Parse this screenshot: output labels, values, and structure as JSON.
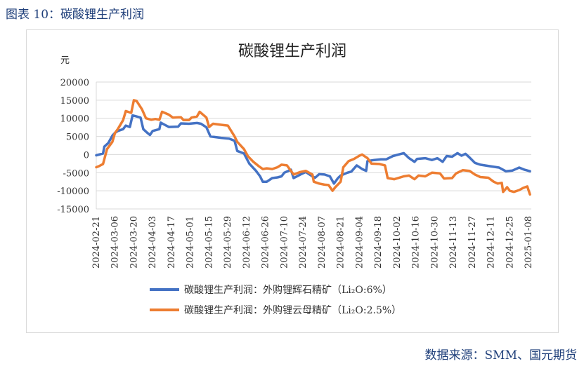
{
  "figure_caption": "图表 10：碳酸锂生产利润",
  "source": "数据来源：SMM、国元期货",
  "colors": {
    "series1": "#4472c4",
    "series2": "#ed7d31",
    "caption": "#1f3f7a"
  },
  "chart_data": {
    "type": "line",
    "title": "碳酸锂生产利润",
    "ylabel": "元",
    "xlabel": "",
    "ylim": [
      -15000,
      20000
    ],
    "yticks": [
      "20000",
      "15000",
      "10000",
      "5000",
      "0",
      "-5000",
      "-10000",
      "-15000"
    ],
    "x_tick_labels": [
      "2024-02-21",
      "2024-03-06",
      "2024-03-20",
      "2024-04-03",
      "2024-04-17",
      "2024-05-01",
      "2024-05-15",
      "2024-05-29",
      "2024-06-12",
      "2024-06-26",
      "2024-07-10",
      "2024-07-24",
      "2024-08-07",
      "2024-08-21",
      "2024-09-04",
      "2024-09-18",
      "2024-10-02",
      "2024-10-16",
      "2024-10-30",
      "2024-11-13",
      "2024-11-27",
      "2024-12-11",
      "2024-12-25",
      "2025-01-08"
    ],
    "x_range": [
      "2024-02-21",
      "2025-01-10"
    ],
    "grid": true,
    "legend_position": "bottom",
    "series": [
      {
        "name": "碳酸锂生产利润：外购锂辉石精矿（Li₂O:6%）",
        "points": [
          [
            "2024-02-21",
            -200
          ],
          [
            "2024-02-26",
            300
          ],
          [
            "2024-02-27",
            2200
          ],
          [
            "2024-03-01",
            3200
          ],
          [
            "2024-03-04",
            5200
          ],
          [
            "2024-03-06",
            6000
          ],
          [
            "2024-03-08",
            6500
          ],
          [
            "2024-03-12",
            7000
          ],
          [
            "2024-03-14",
            8000
          ],
          [
            "2024-03-17",
            7600
          ],
          [
            "2024-03-19",
            10800
          ],
          [
            "2024-03-22",
            10500
          ],
          [
            "2024-03-25",
            10200
          ],
          [
            "2024-03-27",
            7000
          ],
          [
            "2024-03-30",
            6000
          ],
          [
            "2024-04-01",
            5400
          ],
          [
            "2024-04-03",
            6500
          ],
          [
            "2024-04-08",
            7000
          ],
          [
            "2024-04-09",
            8800
          ],
          [
            "2024-04-12",
            8200
          ],
          [
            "2024-04-15",
            7600
          ],
          [
            "2024-04-22",
            7700
          ],
          [
            "2024-04-24",
            8600
          ],
          [
            "2024-04-30",
            8500
          ],
          [
            "2024-05-06",
            8700
          ],
          [
            "2024-05-09",
            8500
          ],
          [
            "2024-05-13",
            7500
          ],
          [
            "2024-05-16",
            5000
          ],
          [
            "2024-05-20",
            4800
          ],
          [
            "2024-05-24",
            4600
          ],
          [
            "2024-05-30",
            4400
          ],
          [
            "2024-06-03",
            3800
          ],
          [
            "2024-06-05",
            1000
          ],
          [
            "2024-06-10",
            300
          ],
          [
            "2024-06-14",
            -2500
          ],
          [
            "2024-06-19",
            -4500
          ],
          [
            "2024-06-22",
            -6000
          ],
          [
            "2024-06-24",
            -7500
          ],
          [
            "2024-06-27",
            -7500
          ],
          [
            "2024-07-01",
            -6500
          ],
          [
            "2024-07-05",
            -6300
          ],
          [
            "2024-07-08",
            -6000
          ],
          [
            "2024-07-10",
            -5000
          ],
          [
            "2024-07-15",
            -4200
          ],
          [
            "2024-07-17",
            -6500
          ],
          [
            "2024-07-22",
            -5500
          ],
          [
            "2024-07-26",
            -4800
          ],
          [
            "2024-07-31",
            -6000
          ],
          [
            "2024-08-02",
            -6400
          ],
          [
            "2024-08-05",
            -5400
          ],
          [
            "2024-08-09",
            -5500
          ],
          [
            "2024-08-13",
            -6000
          ],
          [
            "2024-08-16",
            -8000
          ],
          [
            "2024-08-19",
            -6500
          ],
          [
            "2024-08-21",
            -5800
          ],
          [
            "2024-08-26",
            -5000
          ],
          [
            "2024-08-29",
            -4700
          ],
          [
            "2024-09-02",
            -3000
          ],
          [
            "2024-09-06",
            -4000
          ],
          [
            "2024-09-09",
            -4500
          ],
          [
            "2024-09-10",
            -1800
          ],
          [
            "2024-09-15",
            -1500
          ],
          [
            "2024-09-20",
            -1300
          ],
          [
            "2024-09-24",
            -1300
          ],
          [
            "2024-09-29",
            -400
          ],
          [
            "2024-10-07",
            400
          ],
          [
            "2024-10-11",
            -1000
          ],
          [
            "2024-10-15",
            -2000
          ],
          [
            "2024-10-17",
            -1200
          ],
          [
            "2024-10-23",
            -1000
          ],
          [
            "2024-10-28",
            -1500
          ],
          [
            "2024-11-01",
            -1000
          ],
          [
            "2024-11-05",
            -2000
          ],
          [
            "2024-11-08",
            -400
          ],
          [
            "2024-11-12",
            -600
          ],
          [
            "2024-11-16",
            400
          ],
          [
            "2024-11-19",
            -300
          ],
          [
            "2024-11-22",
            200
          ],
          [
            "2024-11-25",
            -800
          ],
          [
            "2024-11-29",
            -2300
          ],
          [
            "2024-12-03",
            -2800
          ],
          [
            "2024-12-10",
            -3200
          ],
          [
            "2024-12-17",
            -3600
          ],
          [
            "2024-12-22",
            -4600
          ],
          [
            "2024-12-27",
            -4400
          ],
          [
            "2025-01-01",
            -3600
          ],
          [
            "2025-01-05",
            -4200
          ],
          [
            "2025-01-09",
            -4600
          ]
        ]
      },
      {
        "name": "碳酸锂生产利润：外购锂云母精矿（Li₂O:2.5%）",
        "points": [
          [
            "2024-02-21",
            -3500
          ],
          [
            "2024-02-23",
            -3200
          ],
          [
            "2024-02-26",
            -2600
          ],
          [
            "2024-02-29",
            1500
          ],
          [
            "2024-03-04",
            3500
          ],
          [
            "2024-03-06",
            6000
          ],
          [
            "2024-03-08",
            7000
          ],
          [
            "2024-03-12",
            9500
          ],
          [
            "2024-03-14",
            12000
          ],
          [
            "2024-03-18",
            11500
          ],
          [
            "2024-03-20",
            15000
          ],
          [
            "2024-03-22",
            14800
          ],
          [
            "2024-03-26",
            12500
          ],
          [
            "2024-03-29",
            10000
          ],
          [
            "2024-04-02",
            9600
          ],
          [
            "2024-04-05",
            9800
          ],
          [
            "2024-04-08",
            9600
          ],
          [
            "2024-04-10",
            11800
          ],
          [
            "2024-04-15",
            11000
          ],
          [
            "2024-04-18",
            10200
          ],
          [
            "2024-04-24",
            10300
          ],
          [
            "2024-04-26",
            9500
          ],
          [
            "2024-04-30",
            9500
          ],
          [
            "2024-05-02",
            10200
          ],
          [
            "2024-05-06",
            10500
          ],
          [
            "2024-05-08",
            11800
          ],
          [
            "2024-05-13",
            10200
          ],
          [
            "2024-05-15",
            7600
          ],
          [
            "2024-05-18",
            8500
          ],
          [
            "2024-05-24",
            8200
          ],
          [
            "2024-05-29",
            8000
          ],
          [
            "2024-06-03",
            5000
          ],
          [
            "2024-06-05",
            3500
          ],
          [
            "2024-06-10",
            1500
          ],
          [
            "2024-06-13",
            -500
          ],
          [
            "2024-06-17",
            -2000
          ],
          [
            "2024-06-21",
            -3200
          ],
          [
            "2024-06-24",
            -4000
          ],
          [
            "2024-06-27",
            -3800
          ],
          [
            "2024-07-01",
            -4000
          ],
          [
            "2024-07-05",
            -3500
          ],
          [
            "2024-07-08",
            -2800
          ],
          [
            "2024-07-12",
            -3000
          ],
          [
            "2024-07-17",
            -5500
          ],
          [
            "2024-07-22",
            -4800
          ],
          [
            "2024-07-26",
            -4500
          ],
          [
            "2024-07-31",
            -5500
          ],
          [
            "2024-08-01",
            -7500
          ],
          [
            "2024-08-05",
            -8000
          ],
          [
            "2024-08-09",
            -8300
          ],
          [
            "2024-08-12",
            -8400
          ],
          [
            "2024-08-15",
            -10000
          ],
          [
            "2024-08-17",
            -9000
          ],
          [
            "2024-08-21",
            -7500
          ],
          [
            "2024-08-23",
            -3500
          ],
          [
            "2024-08-27",
            -1800
          ],
          [
            "2024-08-31",
            -1200
          ],
          [
            "2024-09-04",
            -300
          ],
          [
            "2024-09-06",
            0
          ],
          [
            "2024-09-10",
            -1000
          ],
          [
            "2024-09-13",
            -2500
          ],
          [
            "2024-09-19",
            -2600
          ],
          [
            "2024-09-23",
            -3000
          ],
          [
            "2024-09-25",
            -6500
          ],
          [
            "2024-09-30",
            -6800
          ],
          [
            "2024-10-07",
            -6000
          ],
          [
            "2024-10-11",
            -5800
          ],
          [
            "2024-10-15",
            -6800
          ],
          [
            "2024-10-18",
            -5800
          ],
          [
            "2024-10-23",
            -6000
          ],
          [
            "2024-10-28",
            -5000
          ],
          [
            "2024-11-03",
            -5200
          ],
          [
            "2024-11-06",
            -6600
          ],
          [
            "2024-11-12",
            -6500
          ],
          [
            "2024-11-15",
            -5200
          ],
          [
            "2024-11-20",
            -4300
          ],
          [
            "2024-11-25",
            -4500
          ],
          [
            "2024-11-29",
            -5500
          ],
          [
            "2024-12-03",
            -6200
          ],
          [
            "2024-12-09",
            -6400
          ],
          [
            "2024-12-13",
            -7500
          ],
          [
            "2024-12-16",
            -8000
          ],
          [
            "2024-12-19",
            -7800
          ],
          [
            "2024-12-20",
            -10300
          ],
          [
            "2024-12-23",
            -9000
          ],
          [
            "2024-12-25",
            -10000
          ],
          [
            "2024-12-28",
            -10300
          ],
          [
            "2025-01-01",
            -9800
          ],
          [
            "2025-01-04",
            -9200
          ],
          [
            "2025-01-07",
            -8800
          ],
          [
            "2025-01-09",
            -11000
          ]
        ]
      }
    ]
  }
}
